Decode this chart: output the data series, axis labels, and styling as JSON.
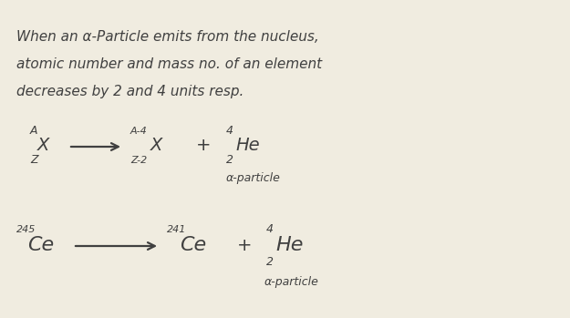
{
  "bg_color": "#f0ece0",
  "text_color": "#404040",
  "line1": "When an α-Particle emits from the nucleus,",
  "line2": "atomic number and mass no. of an element",
  "line3": "decreases by 2 and 4 units resp.",
  "general_eq": {
    "reactant_super": "A",
    "reactant_sub": "Z",
    "reactant_sym": "X",
    "product1_super": "A-4",
    "product1_sub": "Z-2",
    "product1_sym": "X",
    "product2_super": "4",
    "product2_sub": "2",
    "product2_sym": "He",
    "product2_label": "α-particle"
  },
  "specific_eq": {
    "reactant_super": "245",
    "reactant_sub": "",
    "reactant_sym": "Ce",
    "product1_super": "241",
    "product1_sub": "",
    "product1_sym": "Ce",
    "product2_super": "4",
    "product2_sub": "2",
    "product2_sym": "He",
    "product2_label": "α-particle"
  }
}
